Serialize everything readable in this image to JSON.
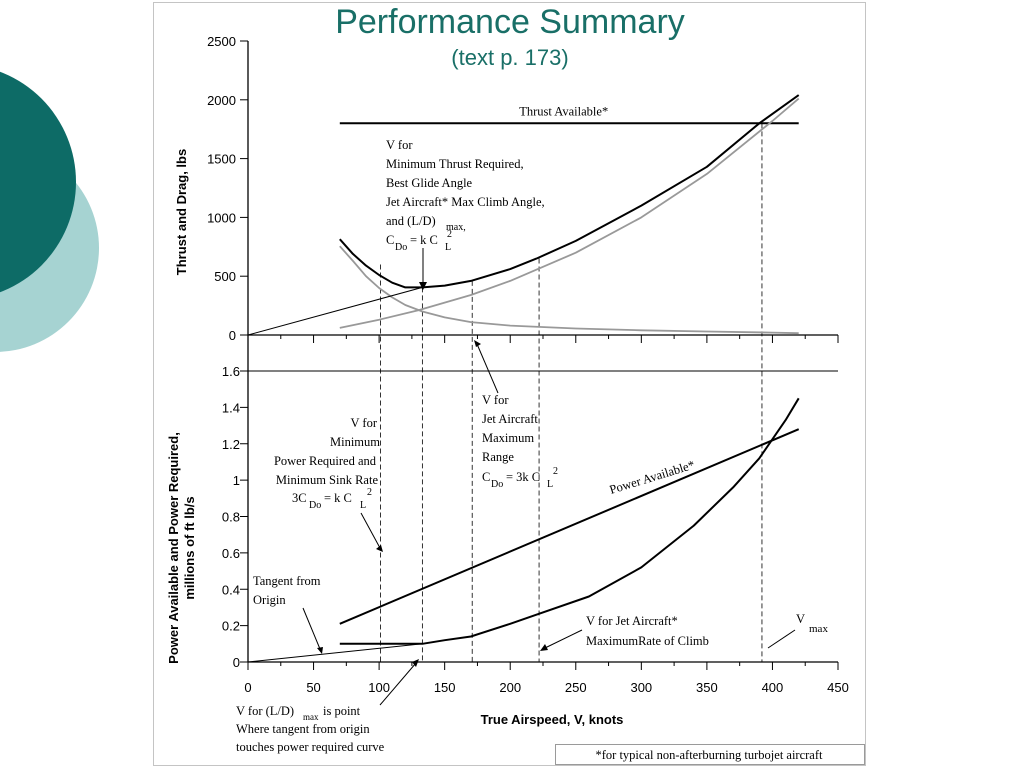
{
  "slide": {
    "title": "Performance Summary",
    "subtitle": "(text p. 173)",
    "footnote": "*for typical non-afterburning turbojet aircraft",
    "colors": {
      "title": "#196f67",
      "circle_dark": "#0d6b66",
      "circle_light": "#a6d3d2"
    }
  },
  "chart_data": [
    {
      "type": "line",
      "xlabel": "True Airspeed, V,  knots",
      "ylabel": "Thrust and Drag, lbs",
      "xlim": [
        0,
        450
      ],
      "ylim": [
        0,
        2500
      ],
      "x_ticks": [
        "0",
        "50",
        "100",
        "150",
        "200",
        "250",
        "300",
        "350",
        "400",
        "450"
      ],
      "y_ticks": [
        "0",
        "500",
        "1000",
        "1500",
        "2000",
        "2500"
      ],
      "series": [
        {
          "name": "Thrust Available*",
          "color": "#000000",
          "x": [
            70,
            420
          ],
          "y": [
            1800,
            1800
          ]
        },
        {
          "color": "#000000",
          "x": [
            70,
            80,
            90,
            100,
            110,
            120,
            133,
            150,
            170,
            200,
            220,
            250,
            280,
            300,
            350,
            390,
            420
          ],
          "y": [
            815,
            690,
            590,
            510,
            445,
            405,
            405,
            420,
            460,
            560,
            650,
            800,
            980,
            1100,
            1430,
            1800,
            2040
          ]
        },
        {
          "color": "#999999",
          "x": [
            70,
            100,
            130,
            170,
            200,
            250,
            300,
            350,
            400,
            420
          ],
          "y": [
            60,
            130,
            210,
            340,
            460,
            700,
            1000,
            1370,
            1820,
            2010
          ]
        },
        {
          "color": "#999999",
          "x": [
            70,
            80,
            90,
            100,
            110,
            120,
            133,
            150,
            170,
            200,
            250,
            300,
            350,
            400,
            420
          ],
          "y": [
            755,
            630,
            500,
            400,
            320,
            255,
            200,
            150,
            110,
            80,
            55,
            40,
            30,
            20,
            15
          ]
        },
        {
          "color": "#000000",
          "x": [
            0,
            133
          ],
          "y": [
            0,
            405
          ]
        }
      ],
      "annotations": [
        "V for",
        "Minimum Thrust Required,",
        "Best Glide Angle",
        "Jet Aircraft* Max Climb Angle,",
        "and (L/D)",
        "max,",
        "C",
        "Do",
        "= k C",
        "L",
        "2"
      ]
    },
    {
      "type": "line",
      "xlabel": "True Airspeed, V,  knots",
      "ylabel": "Power Available and Power Required, millions of ft lb/s",
      "xlim": [
        0,
        450
      ],
      "ylim": [
        0,
        1.6
      ],
      "x_ticks": [
        "0",
        "50",
        "100",
        "150",
        "200",
        "250",
        "300",
        "350",
        "400",
        "450"
      ],
      "y_ticks": [
        "0",
        "0.2",
        "0.4",
        "0.6",
        "0.8",
        "1",
        "1.2",
        "1.4",
        "1.6"
      ],
      "series": [
        {
          "name": "Power Available*",
          "color": "#000000",
          "x": [
            70,
            420
          ],
          "y": [
            0.21,
            1.28
          ]
        },
        {
          "color": "#000000",
          "x": [
            70,
            100,
            133,
            150,
            170,
            200,
            220,
            260,
            300,
            340,
            370,
            390,
            410,
            420
          ],
          "y": [
            0.1,
            0.1,
            0.1,
            0.12,
            0.14,
            0.21,
            0.26,
            0.36,
            0.52,
            0.75,
            0.96,
            1.12,
            1.33,
            1.45
          ]
        },
        {
          "color": "#000000",
          "x": [
            0,
            133
          ],
          "y": [
            0,
            0.1
          ]
        }
      ],
      "markers_x": [
        101,
        133,
        171,
        222,
        392
      ],
      "annotations": [
        "V for",
        "Jet Aircraft",
        "Maximum",
        "Range",
        "C",
        "Do",
        "= 3k C",
        "L",
        "2",
        "V for",
        "Minimum",
        "Power Required and",
        "Minimum Sink Rate",
        "3C",
        "Do",
        "= k C",
        "L",
        "2",
        "Tangent from",
        "Origin",
        "V for Jet Aircraft*",
        "MaximumRate of Climb",
        "V",
        "max",
        "V for (L/D)",
        "max",
        " is point",
        "Where tangent from origin",
        "touches power required curve"
      ]
    }
  ]
}
